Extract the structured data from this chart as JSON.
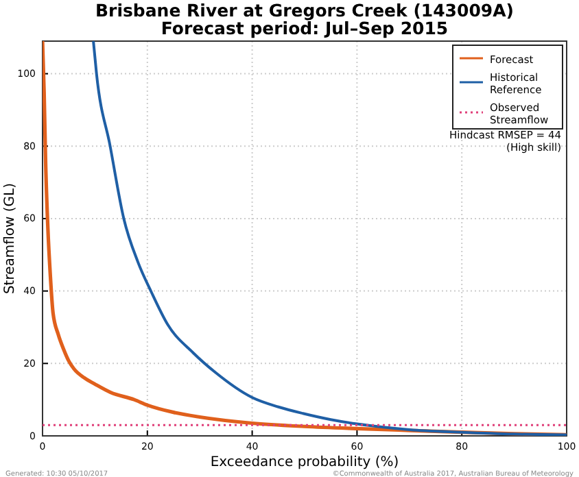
{
  "chart_data": {
    "type": "line",
    "title": "Brisbane River at Gregors Creek (143009A)",
    "subtitle": "Forecast period: Jul–Sep 2015",
    "xlabel": "Exceedance probability (%)",
    "ylabel": "Streamflow (GL)",
    "xlim": [
      0,
      100
    ],
    "ylim": [
      0,
      109
    ],
    "xticks": [
      0,
      20,
      40,
      60,
      80,
      100
    ],
    "yticks": [
      0,
      20,
      40,
      60,
      80,
      100
    ],
    "grid": true,
    "legend": "top right",
    "series": [
      {
        "name": "Forecast",
        "color": "#e0601c",
        "line_style": "solid",
        "x": [
          0,
          0.3,
          0.6,
          1,
          1.5,
          2,
          3,
          4,
          5,
          6,
          8,
          10,
          13,
          17.5,
          20,
          25,
          30,
          40,
          50,
          60,
          70,
          80,
          90,
          100
        ],
        "values": [
          109,
          95,
          75,
          58,
          44,
          34,
          28,
          24,
          20.7,
          18.5,
          16,
          14.3,
          12,
          10,
          8.5,
          6.5,
          5.2,
          3.5,
          2.6,
          2,
          1.5,
          1,
          0.6,
          0.3
        ]
      },
      {
        "name": "Historical Reference",
        "color": "#1f5fa5",
        "line_style": "solid",
        "x": [
          9.7,
          10.3,
          12.9,
          15.5,
          18.2,
          20.8,
          23.9,
          28.7,
          33,
          40,
          45,
          49.7,
          55,
          60,
          65,
          70,
          80,
          90,
          100
        ],
        "values": [
          109,
          100,
          80,
          60,
          48,
          39.6,
          30.7,
          23,
          17.5,
          10.6,
          8,
          6.2,
          4.5,
          3.3,
          2.4,
          1.7,
          1,
          0.5,
          0.3
        ]
      },
      {
        "name": "Observed Streamflow",
        "color": "#e0407a",
        "line_style": "dotted",
        "x": [
          0,
          100
        ],
        "values": [
          3,
          3
        ]
      }
    ],
    "annotations": [
      "Hindcast RMSEP = 44",
      "(High skill)",
      "Generated: 10:30 05/10/2017",
      "©Commonwealth of Australia 2017, Australian Bureau of Meteorology"
    ]
  }
}
